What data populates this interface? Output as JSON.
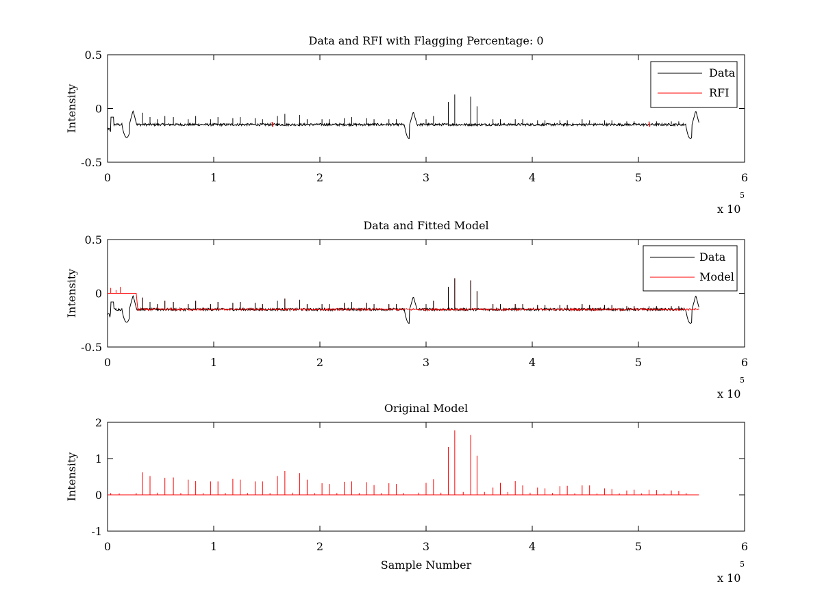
{
  "figure": {
    "background": "#ffffff"
  },
  "colors": {
    "data": "#000000",
    "rfi": "#ff0000",
    "model": "#ff0000",
    "axes": "#000000"
  },
  "chart_data": [
    {
      "id": "panel1",
      "type": "line",
      "title": "Data and RFI with Flagging Percentage: 0",
      "xlabel": "",
      "ylabel": "Intensity",
      "xlim": [
        0,
        600000
      ],
      "ylim": [
        -0.5,
        0.5
      ],
      "xticks": [
        0,
        1,
        2,
        3,
        4,
        5,
        6
      ],
      "yticks": [
        "-0.5",
        "0",
        "0.5"
      ],
      "xexponent": {
        "base": "x 10",
        "exp": "5"
      },
      "legend": {
        "position": "top-right",
        "entries": [
          {
            "name": "Data",
            "color": "#000000"
          },
          {
            "name": "RFI",
            "color": "#ff0000"
          }
        ]
      },
      "baseline": -0.15,
      "x_end": 557000,
      "dips": [
        {
          "x": 18000,
          "y": -0.27
        },
        {
          "x": 284000,
          "y": -0.28
        },
        {
          "x": 549000,
          "y": -0.28
        }
      ],
      "bumps": [
        {
          "x": 24000,
          "y": -0.02
        },
        {
          "x": 288000,
          "y": -0.03
        },
        {
          "x": 554000,
          "y": -0.02
        }
      ],
      "spikes": [
        {
          "x": 33000,
          "y": -0.04
        },
        {
          "x": 40000,
          "y": -0.08
        },
        {
          "x": 47000,
          "y": -0.1
        },
        {
          "x": 54000,
          "y": -0.07
        },
        {
          "x": 62000,
          "y": -0.08
        },
        {
          "x": 76000,
          "y": -0.1
        },
        {
          "x": 83000,
          "y": -0.07
        },
        {
          "x": 97000,
          "y": -0.1
        },
        {
          "x": 104000,
          "y": -0.08
        },
        {
          "x": 118000,
          "y": -0.09
        },
        {
          "x": 125000,
          "y": -0.08
        },
        {
          "x": 139000,
          "y": -0.09
        },
        {
          "x": 146000,
          "y": -0.1
        },
        {
          "x": 160000,
          "y": -0.07
        },
        {
          "x": 167000,
          "y": -0.05
        },
        {
          "x": 181000,
          "y": -0.06
        },
        {
          "x": 188000,
          "y": -0.1
        },
        {
          "x": 202000,
          "y": -0.1
        },
        {
          "x": 209000,
          "y": -0.1
        },
        {
          "x": 223000,
          "y": -0.09
        },
        {
          "x": 230000,
          "y": -0.08
        },
        {
          "x": 244000,
          "y": -0.09
        },
        {
          "x": 251000,
          "y": -0.1
        },
        {
          "x": 265000,
          "y": -0.1
        },
        {
          "x": 272000,
          "y": -0.1
        },
        {
          "x": 300000,
          "y": -0.1
        },
        {
          "x": 307000,
          "y": -0.07
        },
        {
          "x": 321000,
          "y": 0.06
        },
        {
          "x": 327000,
          "y": 0.13
        },
        {
          "x": 342000,
          "y": 0.11
        },
        {
          "x": 348000,
          "y": 0.02
        },
        {
          "x": 363000,
          "y": -0.1
        },
        {
          "x": 370000,
          "y": -0.1
        },
        {
          "x": 384000,
          "y": -0.1
        },
        {
          "x": 391000,
          "y": -0.1
        },
        {
          "x": 405000,
          "y": -0.11
        },
        {
          "x": 412000,
          "y": -0.11
        },
        {
          "x": 426000,
          "y": -0.11
        },
        {
          "x": 433000,
          "y": -0.11
        },
        {
          "x": 447000,
          "y": -0.1
        },
        {
          "x": 454000,
          "y": -0.11
        },
        {
          "x": 468000,
          "y": -0.11
        },
        {
          "x": 475000,
          "y": -0.11
        },
        {
          "x": 489000,
          "y": -0.12
        },
        {
          "x": 496000,
          "y": -0.12
        },
        {
          "x": 510000,
          "y": -0.12
        },
        {
          "x": 517000,
          "y": -0.12
        },
        {
          "x": 531000,
          "y": -0.12
        },
        {
          "x": 538000,
          "y": -0.12
        }
      ],
      "rfi_marks": [
        {
          "x": 155000,
          "y": -0.15
        },
        {
          "x": 510000,
          "y": -0.15
        }
      ]
    },
    {
      "id": "panel2",
      "type": "line",
      "title": "Data and Fitted Model",
      "xlabel": "",
      "ylabel": "Intensity",
      "xlim": [
        0,
        600000
      ],
      "ylim": [
        -0.5,
        0.5
      ],
      "xticks": [
        0,
        1,
        2,
        3,
        4,
        5,
        6
      ],
      "yticks": [
        "-0.5",
        "0",
        "0.5"
      ],
      "xexponent": {
        "base": "x 10",
        "exp": "5"
      },
      "legend": {
        "position": "top-right",
        "entries": [
          {
            "name": "Data",
            "color": "#000000"
          },
          {
            "name": "Model",
            "color": "#ff0000"
          }
        ]
      },
      "baseline": -0.15,
      "x_end": 557000,
      "model_initial": {
        "x_start": 0,
        "x_end": 27000,
        "y": 0.0
      },
      "dips": [
        {
          "x": 18000,
          "y": -0.27
        },
        {
          "x": 284000,
          "y": -0.28
        },
        {
          "x": 549000,
          "y": -0.28
        }
      ],
      "bumps": [
        {
          "x": 24000,
          "y": -0.02
        },
        {
          "x": 288000,
          "y": -0.03
        },
        {
          "x": 554000,
          "y": -0.02
        }
      ],
      "spikes": [
        {
          "x": 3000,
          "y": 0.05
        },
        {
          "x": 8000,
          "y": 0.03
        },
        {
          "x": 12000,
          "y": 0.06
        },
        {
          "x": 33000,
          "y": -0.04
        },
        {
          "x": 40000,
          "y": -0.08
        },
        {
          "x": 47000,
          "y": -0.1
        },
        {
          "x": 54000,
          "y": -0.07
        },
        {
          "x": 62000,
          "y": -0.08
        },
        {
          "x": 76000,
          "y": -0.1
        },
        {
          "x": 83000,
          "y": -0.07
        },
        {
          "x": 97000,
          "y": -0.1
        },
        {
          "x": 104000,
          "y": -0.08
        },
        {
          "x": 118000,
          "y": -0.09
        },
        {
          "x": 125000,
          "y": -0.08
        },
        {
          "x": 139000,
          "y": -0.09
        },
        {
          "x": 146000,
          "y": -0.1
        },
        {
          "x": 160000,
          "y": -0.07
        },
        {
          "x": 167000,
          "y": -0.05
        },
        {
          "x": 181000,
          "y": -0.06
        },
        {
          "x": 188000,
          "y": -0.1
        },
        {
          "x": 202000,
          "y": -0.1
        },
        {
          "x": 209000,
          "y": -0.1
        },
        {
          "x": 223000,
          "y": -0.09
        },
        {
          "x": 230000,
          "y": -0.08
        },
        {
          "x": 244000,
          "y": -0.09
        },
        {
          "x": 251000,
          "y": -0.1
        },
        {
          "x": 265000,
          "y": -0.1
        },
        {
          "x": 272000,
          "y": -0.1
        },
        {
          "x": 300000,
          "y": -0.1
        },
        {
          "x": 307000,
          "y": -0.07
        },
        {
          "x": 321000,
          "y": 0.06
        },
        {
          "x": 327000,
          "y": 0.14
        },
        {
          "x": 342000,
          "y": 0.12
        },
        {
          "x": 348000,
          "y": 0.02
        },
        {
          "x": 363000,
          "y": -0.1
        },
        {
          "x": 370000,
          "y": -0.1
        },
        {
          "x": 384000,
          "y": -0.1
        },
        {
          "x": 391000,
          "y": -0.1
        },
        {
          "x": 405000,
          "y": -0.11
        },
        {
          "x": 412000,
          "y": -0.11
        },
        {
          "x": 426000,
          "y": -0.11
        },
        {
          "x": 433000,
          "y": -0.11
        },
        {
          "x": 447000,
          "y": -0.1
        },
        {
          "x": 454000,
          "y": -0.11
        },
        {
          "x": 468000,
          "y": -0.11
        },
        {
          "x": 475000,
          "y": -0.11
        },
        {
          "x": 489000,
          "y": -0.12
        },
        {
          "x": 496000,
          "y": -0.12
        },
        {
          "x": 510000,
          "y": -0.12
        },
        {
          "x": 517000,
          "y": -0.12
        },
        {
          "x": 531000,
          "y": -0.12
        },
        {
          "x": 538000,
          "y": -0.12
        }
      ]
    },
    {
      "id": "panel3",
      "type": "line",
      "title": "Original Model",
      "xlabel": "Sample Number",
      "ylabel": "Intensity",
      "xlim": [
        0,
        600000
      ],
      "ylim": [
        -1,
        2
      ],
      "xticks": [
        0,
        1,
        2,
        3,
        4,
        5,
        6
      ],
      "yticks": [
        "-1",
        "0",
        "1",
        "2"
      ],
      "xexponent": {
        "base": "x 10",
        "exp": "5"
      },
      "baseline": 0,
      "x_end": 557000,
      "spikes": [
        {
          "x": 3000,
          "y": 0.05
        },
        {
          "x": 11000,
          "y": 0.04
        },
        {
          "x": 27000,
          "y": 0.05
        },
        {
          "x": 33000,
          "y": 0.62
        },
        {
          "x": 40000,
          "y": 0.52
        },
        {
          "x": 47000,
          "y": 0.06
        },
        {
          "x": 54000,
          "y": 0.47
        },
        {
          "x": 62000,
          "y": 0.48
        },
        {
          "x": 69000,
          "y": 0.05
        },
        {
          "x": 76000,
          "y": 0.42
        },
        {
          "x": 83000,
          "y": 0.38
        },
        {
          "x": 90000,
          "y": 0.05
        },
        {
          "x": 97000,
          "y": 0.37
        },
        {
          "x": 104000,
          "y": 0.37
        },
        {
          "x": 111000,
          "y": 0.05
        },
        {
          "x": 118000,
          "y": 0.44
        },
        {
          "x": 125000,
          "y": 0.42
        },
        {
          "x": 132000,
          "y": 0.05
        },
        {
          "x": 139000,
          "y": 0.37
        },
        {
          "x": 146000,
          "y": 0.37
        },
        {
          "x": 153000,
          "y": 0.05
        },
        {
          "x": 160000,
          "y": 0.52
        },
        {
          "x": 167000,
          "y": 0.66
        },
        {
          "x": 174000,
          "y": 0.06
        },
        {
          "x": 181000,
          "y": 0.6
        },
        {
          "x": 188000,
          "y": 0.42
        },
        {
          "x": 195000,
          "y": 0.05
        },
        {
          "x": 202000,
          "y": 0.32
        },
        {
          "x": 209000,
          "y": 0.3
        },
        {
          "x": 216000,
          "y": 0.05
        },
        {
          "x": 223000,
          "y": 0.36
        },
        {
          "x": 230000,
          "y": 0.37
        },
        {
          "x": 237000,
          "y": 0.05
        },
        {
          "x": 244000,
          "y": 0.35
        },
        {
          "x": 251000,
          "y": 0.27
        },
        {
          "x": 258000,
          "y": 0.05
        },
        {
          "x": 265000,
          "y": 0.32
        },
        {
          "x": 272000,
          "y": 0.3
        },
        {
          "x": 279000,
          "y": 0.05
        },
        {
          "x": 293000,
          "y": 0.06
        },
        {
          "x": 300000,
          "y": 0.33
        },
        {
          "x": 307000,
          "y": 0.43
        },
        {
          "x": 314000,
          "y": 0.06
        },
        {
          "x": 321000,
          "y": 1.32
        },
        {
          "x": 327000,
          "y": 1.78
        },
        {
          "x": 335000,
          "y": 0.08
        },
        {
          "x": 342000,
          "y": 1.65
        },
        {
          "x": 348000,
          "y": 1.08
        },
        {
          "x": 355000,
          "y": 0.08
        },
        {
          "x": 363000,
          "y": 0.2
        },
        {
          "x": 370000,
          "y": 0.33
        },
        {
          "x": 377000,
          "y": 0.08
        },
        {
          "x": 384000,
          "y": 0.38
        },
        {
          "x": 391000,
          "y": 0.26
        },
        {
          "x": 398000,
          "y": 0.06
        },
        {
          "x": 405000,
          "y": 0.2
        },
        {
          "x": 412000,
          "y": 0.18
        },
        {
          "x": 419000,
          "y": 0.05
        },
        {
          "x": 426000,
          "y": 0.24
        },
        {
          "x": 433000,
          "y": 0.25
        },
        {
          "x": 440000,
          "y": 0.04
        },
        {
          "x": 447000,
          "y": 0.26
        },
        {
          "x": 454000,
          "y": 0.26
        },
        {
          "x": 461000,
          "y": 0.04
        },
        {
          "x": 468000,
          "y": 0.18
        },
        {
          "x": 475000,
          "y": 0.16
        },
        {
          "x": 482000,
          "y": 0.04
        },
        {
          "x": 489000,
          "y": 0.12
        },
        {
          "x": 496000,
          "y": 0.14
        },
        {
          "x": 503000,
          "y": 0.04
        },
        {
          "x": 510000,
          "y": 0.14
        },
        {
          "x": 517000,
          "y": 0.13
        },
        {
          "x": 524000,
          "y": 0.04
        },
        {
          "x": 531000,
          "y": 0.12
        },
        {
          "x": 538000,
          "y": 0.11
        },
        {
          "x": 545000,
          "y": 0.05
        }
      ]
    }
  ]
}
